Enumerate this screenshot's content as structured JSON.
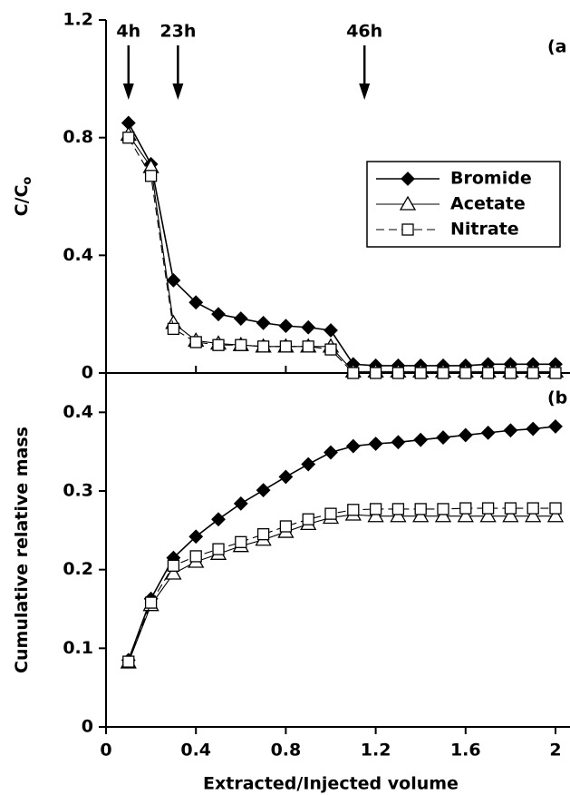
{
  "chart_data": [
    {
      "type": "line",
      "panel_label": "(a",
      "y_label": "C/C",
      "y_label_sub": "o",
      "xlim": [
        0,
        2.05
      ],
      "ylim": [
        0,
        1.2
      ],
      "yticks": [
        0,
        0.4,
        0.8,
        1.2
      ],
      "legend": "upper right",
      "annotations": [
        {
          "text": "4h",
          "x": 0.1
        },
        {
          "text": "23h",
          "x": 0.32
        },
        {
          "text": "46h",
          "x": 1.15
        }
      ],
      "x": [
        0.1,
        0.2,
        0.3,
        0.4,
        0.5,
        0.6,
        0.7,
        0.8,
        0.9,
        1.0,
        1.1,
        1.2,
        1.3,
        1.4,
        1.5,
        1.6,
        1.7,
        1.8,
        1.9,
        2.0
      ],
      "series": [
        {
          "name": "Bromide",
          "color": "#000000",
          "marker": "diamond",
          "dash": false,
          "values": [
            0.85,
            0.71,
            0.315,
            0.24,
            0.2,
            0.185,
            0.17,
            0.16,
            0.155,
            0.145,
            0.03,
            0.025,
            0.025,
            0.025,
            0.025,
            0.025,
            0.03,
            0.03,
            0.03,
            0.03
          ]
        },
        {
          "name": "Acetate",
          "color": "#000000",
          "marker": "triangle",
          "dash": false,
          "values": [
            0.81,
            0.7,
            0.17,
            0.11,
            0.1,
            0.095,
            0.09,
            0.09,
            0.09,
            0.09,
            0.005,
            0.005,
            0.005,
            0.005,
            0.005,
            0.005,
            0.005,
            0.005,
            0.005,
            0.005
          ]
        },
        {
          "name": "Nitrate",
          "color": "#000000",
          "marker": "square",
          "dash": true,
          "values": [
            0.8,
            0.67,
            0.15,
            0.105,
            0.095,
            0.095,
            0.09,
            0.09,
            0.09,
            0.08,
            0,
            0,
            0,
            0,
            0,
            0,
            0,
            0,
            0,
            0
          ]
        }
      ]
    },
    {
      "type": "line",
      "panel_label": "(b",
      "y_label": "Cumulative relative mass",
      "x_label": "Extracted/Injected volume",
      "xlim": [
        0,
        2.05
      ],
      "xticks": [
        0,
        0.4,
        0.8,
        1.2,
        1.6,
        2
      ],
      "ylim": [
        0,
        0.45
      ],
      "yticks": [
        0,
        0.1,
        0.2,
        0.3,
        0.4
      ],
      "x": [
        0.1,
        0.2,
        0.3,
        0.4,
        0.5,
        0.6,
        0.7,
        0.8,
        0.9,
        1.0,
        1.1,
        1.2,
        1.3,
        1.4,
        1.5,
        1.6,
        1.7,
        1.8,
        1.9,
        2.0
      ],
      "series": [
        {
          "color": "#000000",
          "marker": "diamond",
          "dash": false,
          "values": [
            0.085,
            0.163,
            0.215,
            0.242,
            0.264,
            0.284,
            0.301,
            0.318,
            0.334,
            0.349,
            0.357,
            0.36,
            0.362,
            0.365,
            0.368,
            0.371,
            0.374,
            0.377,
            0.379,
            0.382
          ]
        },
        {
          "color": "#000000",
          "marker": "triangle",
          "dash": false,
          "values": [
            0.082,
            0.155,
            0.195,
            0.21,
            0.22,
            0.23,
            0.238,
            0.248,
            0.258,
            0.266,
            0.27,
            0.268,
            0.268,
            0.268,
            0.268,
            0.268,
            0.268,
            0.268,
            0.268,
            0.268
          ]
        },
        {
          "color": "#000000",
          "marker": "square",
          "dash": true,
          "values": [
            0.083,
            0.158,
            0.205,
            0.217,
            0.226,
            0.235,
            0.245,
            0.255,
            0.264,
            0.271,
            0.276,
            0.277,
            0.277,
            0.277,
            0.277,
            0.278,
            0.278,
            0.278,
            0.278,
            0.278
          ]
        }
      ]
    }
  ]
}
